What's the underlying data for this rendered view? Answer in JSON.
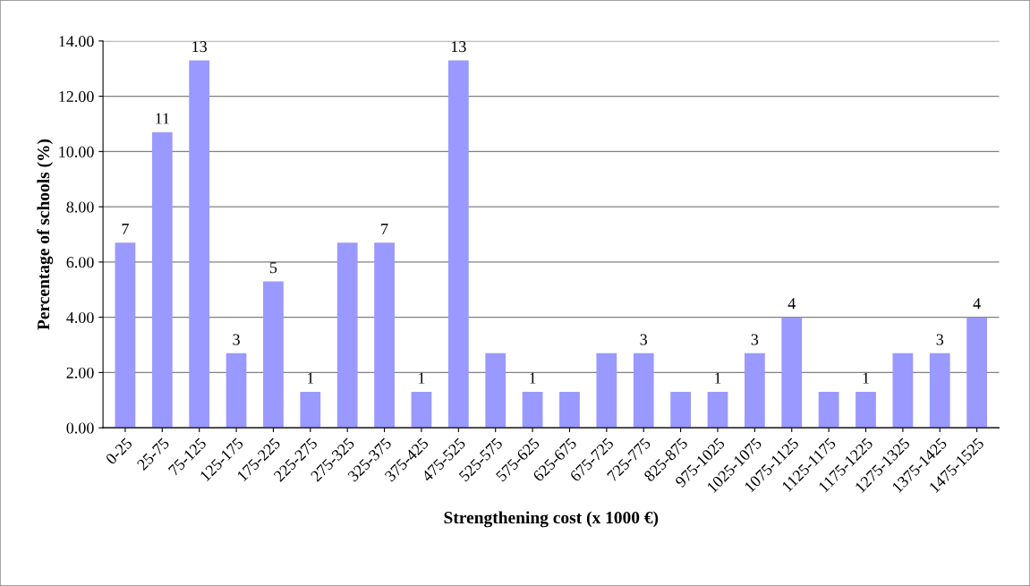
{
  "chart_data": {
    "type": "bar",
    "xlabel": "Strengthening cost (x 1000 €)",
    "ylabel": "Percentage of schools (%)",
    "categories": [
      "0-25",
      "25-75",
      "75-125",
      "125-175",
      "175-225",
      "225-275",
      "275-325",
      "325-375",
      "375-425",
      "475-525",
      "525-575",
      "575-625",
      "625-675",
      "675-725",
      "725-775",
      "825-875",
      "975-1025",
      "1025-1075",
      "1075-1125",
      "1125-1175",
      "1175-1225",
      "1275-1325",
      "1375-1425",
      "1475-1525"
    ],
    "values": [
      6.7,
      10.7,
      13.3,
      2.7,
      5.3,
      1.3,
      6.7,
      6.7,
      1.3,
      13.3,
      2.7,
      1.3,
      1.3,
      2.7,
      2.7,
      1.3,
      1.3,
      2.7,
      4.0,
      1.3,
      1.3,
      2.7,
      2.7,
      4.0
    ],
    "value_labels": [
      "7",
      "11",
      "13",
      "3",
      "5",
      "1",
      null,
      "7",
      "1",
      "13",
      null,
      "1",
      null,
      null,
      "3",
      null,
      "1",
      "3",
      "4",
      null,
      "1",
      null,
      "3",
      "4"
    ],
    "color": "#9999ff",
    "ylim": [
      0,
      14
    ],
    "yticks": [
      {
        "value": 0,
        "label": "0.00"
      },
      {
        "value": 2,
        "label": "2.00"
      },
      {
        "value": 4,
        "label": "4.00"
      },
      {
        "value": 6,
        "label": "6.00"
      },
      {
        "value": 8,
        "label": "8.00"
      },
      {
        "value": 10,
        "label": "10.00"
      },
      {
        "value": 12,
        "label": "12.00"
      },
      {
        "value": 14,
        "label": "14.00"
      }
    ],
    "grid": "y",
    "legend": false
  }
}
